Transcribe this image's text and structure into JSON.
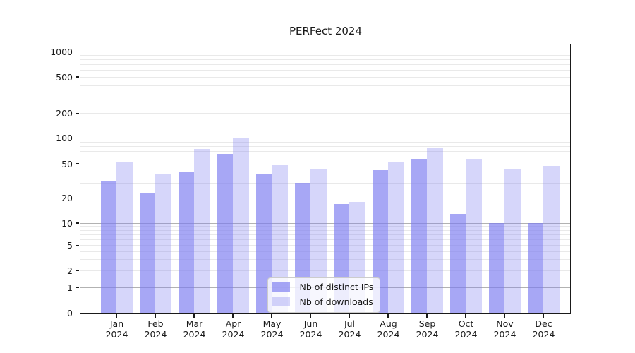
{
  "chart_data": {
    "type": "bar",
    "title": "PERFect 2024",
    "categories": [
      "Jan",
      "Feb",
      "Mar",
      "Apr",
      "May",
      "Jun",
      "Jul",
      "Aug",
      "Sep",
      "Oct",
      "Nov",
      "Dec"
    ],
    "year": "2024",
    "series": [
      {
        "name": "Nb of distinct IPs",
        "key": "distinct-ips",
        "color": "#a7a7f5",
        "values": [
          31,
          23,
          40,
          65,
          38,
          30,
          17,
          42,
          57,
          13,
          10,
          10
        ]
      },
      {
        "name": "Nb of downloads",
        "key": "downloads",
        "color": "#d7d7fa",
        "values": [
          52,
          38,
          75,
          100,
          48,
          43,
          18,
          52,
          78,
          57,
          43,
          47
        ]
      }
    ],
    "y_ticks": [
      0,
      1,
      2,
      5,
      10,
      20,
      50,
      100,
      200,
      500,
      1000
    ],
    "y_scale": "symlog",
    "xlabel": "",
    "ylabel": "",
    "grid": "on",
    "legend_position": "lower center",
    "colors": {
      "bar_base": "#7a7af0",
      "grid_major": "#b2b2b2",
      "grid_minor": "#e9e9e9",
      "axis": "#1a1a1a",
      "legend_border": "#cccccc"
    }
  }
}
